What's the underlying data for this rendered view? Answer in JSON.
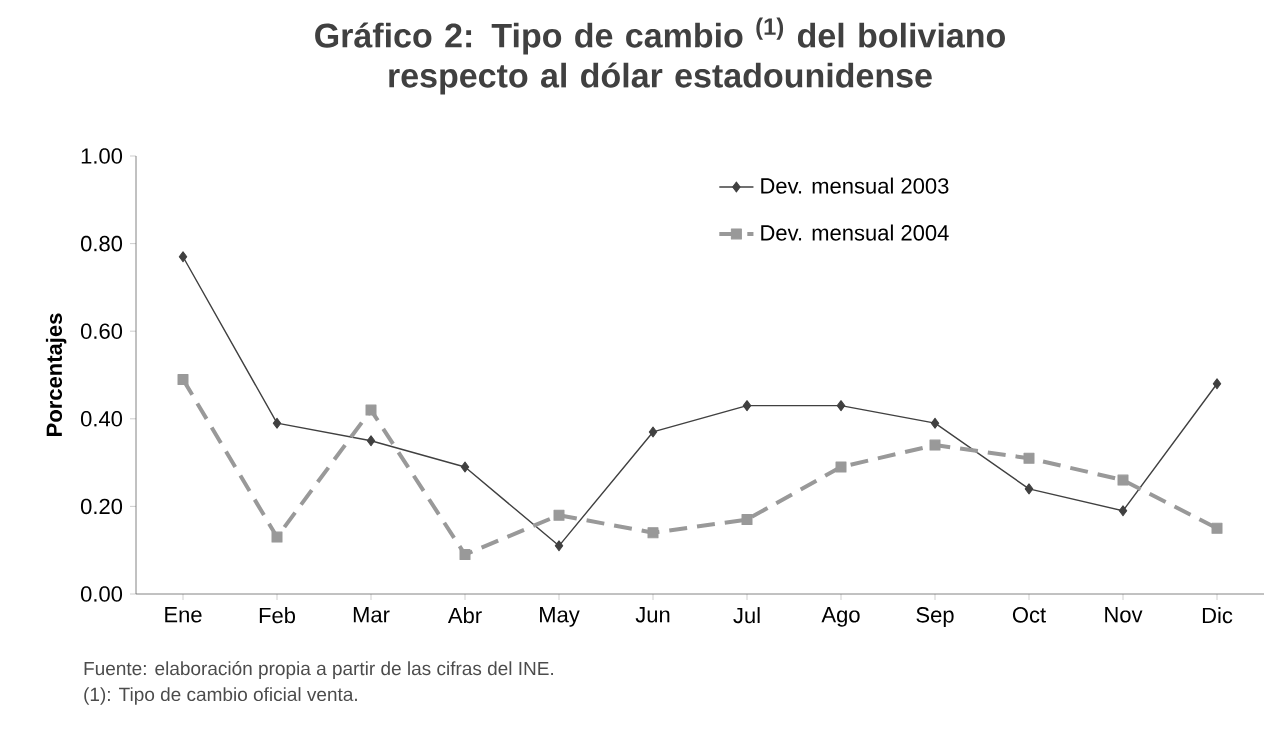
{
  "chart_data": {
    "type": "line",
    "title": "Gráfico 2: Tipo de cambio $^{(1)}$ del boliviano respecto al dólar estadounidense",
    "ylabel": "Porcentajes",
    "categories": [
      "Ene",
      "Feb",
      "Mar",
      "Abr",
      "May",
      "Jun",
      "Jul",
      "Ago",
      "Sep",
      "Oct",
      "Nov",
      "Dic"
    ],
    "series": [
      {
        "name": "Dev. mensual 2003",
        "color": "#404040",
        "marker": "diamond",
        "line_style": "solid",
        "values": [
          0.77,
          0.39,
          0.35,
          0.29,
          0.11,
          0.37,
          0.43,
          0.43,
          0.39,
          0.24,
          0.19,
          0.48
        ]
      },
      {
        "name": "Dev. mensual 2004",
        "color": "#999999",
        "marker": "square",
        "line_style": "dashed",
        "values": [
          0.49,
          0.13,
          0.42,
          0.09,
          0.18,
          0.14,
          0.17,
          0.29,
          0.34,
          0.31,
          0.26,
          0.15
        ]
      }
    ],
    "ylim": [
      0,
      1
    ],
    "yticks": [
      {
        "value": 0,
        "label": "0.00"
      },
      {
        "value": 0.2,
        "label": "0.20"
      },
      {
        "value": 0.4,
        "label": "0.40"
      },
      {
        "value": 0.6,
        "label": "0.60"
      },
      {
        "value": 0.8,
        "label": "0.80"
      },
      {
        "value": 1,
        "label": "1.00"
      }
    ],
    "grid": false,
    "legend": "top",
    "annotations": [
      "Fuente: elaboración propia a partir de las cifras del INE.",
      "(1): Tipo de cambio oficial venta."
    ]
  }
}
